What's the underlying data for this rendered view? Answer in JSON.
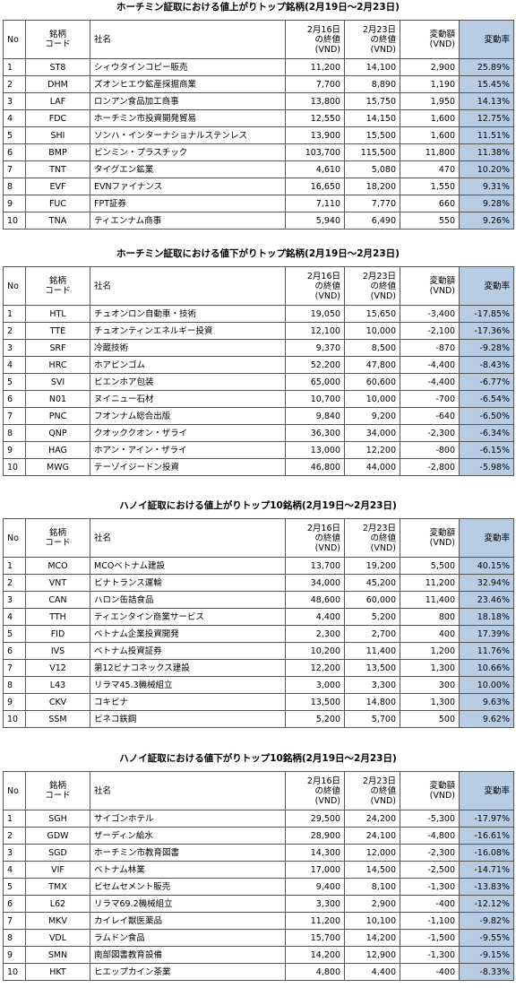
{
  "tables": [
    {
      "title": "ホーチミン証取における値上がりトップ銘柄(2月19日～2月23日)",
      "header": [
        "No",
        "銘柄\nコード",
        "社名",
        "2月16日\nの終値\n(VND)",
        "2月23日\nの終値\n(VND)",
        "変動額\n(VND)",
        "変動率"
      ],
      "rows": [
        [
          "1",
          "ST8",
          "シィウタインコピー販売",
          "11,200",
          "14,100",
          "2,900",
          "25.89%"
        ],
        [
          "2",
          "DHM",
          "ズオンヒエウ鉱産採掘商業",
          "7,700",
          "8,890",
          "1,190",
          "15.45%"
        ],
        [
          "3",
          "LAF",
          "ロンアン食品加工商事",
          "13,800",
          "15,750",
          "1,950",
          "14.13%"
        ],
        [
          "4",
          "FDC",
          "ホーチミン市投資開発貿易",
          "12,550",
          "14,150",
          "1,600",
          "12.75%"
        ],
        [
          "5",
          "SHI",
          "ソンハ・インターナショナルステンレス",
          "13,900",
          "15,500",
          "1,600",
          "11.51%"
        ],
        [
          "6",
          "BMP",
          "ビンミン・プラスチック",
          "103,700",
          "115,500",
          "11,800",
          "11.38%"
        ],
        [
          "7",
          "TNT",
          "タイグエン鉱業",
          "4,610",
          "5,080",
          "470",
          "10.20%"
        ],
        [
          "8",
          "EVF",
          "EVNファイナンス",
          "16,650",
          "18,200",
          "1,550",
          "9.31%"
        ],
        [
          "9",
          "FUC",
          "FPT証券",
          "7,110",
          "7,770",
          "660",
          "9.28%"
        ],
        [
          "10",
          "TNA",
          "ティエンナム商事",
          "5,940",
          "6,490",
          "550",
          "9.26%"
        ]
      ]
    },
    {
      "title": "ホーチミン証取における値下がりトップ銘柄(2月19日～2月23日)",
      "header": [
        "No",
        "銘柄\nコード",
        "社名",
        "2月16日\nの終値\n(VND)",
        "2月23日\nの終値\n(VND)",
        "変動額\n(VND)",
        "変動率"
      ],
      "rows": [
        [
          "1",
          "HTL",
          "チュオンロン自動車・技術",
          "19,050",
          "15,650",
          "-3,400",
          "-17.85%"
        ],
        [
          "2",
          "TTE",
          "チュオンティンエネルギー投資",
          "12,100",
          "10,000",
          "-2,100",
          "-17.36%"
        ],
        [
          "3",
          "SRF",
          "冷蔵技術",
          "9,370",
          "8,500",
          "-870",
          "-9.28%"
        ],
        [
          "4",
          "HRC",
          "ホアビンゴム",
          "52,200",
          "47,800",
          "-4,400",
          "-8.43%"
        ],
        [
          "5",
          "SVI",
          "ビエンホア包装",
          "65,000",
          "60,600",
          "-4,400",
          "-6.77%"
        ],
        [
          "6",
          "N01",
          "ヌイニュー石材",
          "10,700",
          "10,000",
          "-700",
          "-6.54%"
        ],
        [
          "7",
          "PNC",
          "フオンナム総合出版",
          "9,840",
          "9,200",
          "-640",
          "-6.50%"
        ],
        [
          "8",
          "QNP",
          "クオッククオン・ザライ",
          "36,300",
          "34,000",
          "-2,300",
          "-6.34%"
        ],
        [
          "9",
          "HAG",
          "ホアン・アイン・ザライ",
          "13,000",
          "12,200",
          "-800",
          "-6.15%"
        ],
        [
          "10",
          "MWG",
          "テーゾイジードン投資",
          "46,800",
          "44,000",
          "-2,800",
          "-5.98%"
        ]
      ]
    },
    {
      "title": "ハノイ証取における値上がりトップ10銘柄(2月19日～2月23日)",
      "header": [
        "No",
        "銘柄\nコード",
        "社名",
        "2月16日\nの終値\n(VND)",
        "2月23日\nの終値\n(VND)",
        "変動額\n(VND)",
        "変動率"
      ],
      "rows": [
        [
          "1",
          "MCO",
          "MCOベトナム建設",
          "13,700",
          "19,200",
          "5,500",
          "40.15%"
        ],
        [
          "2",
          "VNT",
          "ビナトランス運輸",
          "34,000",
          "45,200",
          "11,200",
          "32.94%"
        ],
        [
          "3",
          "CAN",
          "ハロン缶詰食品",
          "48,600",
          "60,000",
          "11,400",
          "23.46%"
        ],
        [
          "4",
          "TTH",
          "ティエンタイン商業サービス",
          "4,400",
          "5,200",
          "800",
          "18.18%"
        ],
        [
          "5",
          "FID",
          "ベトナム企業投資開発",
          "2,300",
          "2,700",
          "400",
          "17.39%"
        ],
        [
          "6",
          "IVS",
          "ベトナム投資証券",
          "10,200",
          "11,400",
          "1,200",
          "11.76%"
        ],
        [
          "7",
          "V12",
          "第12ビナコネックス建設",
          "12,200",
          "13,500",
          "1,300",
          "10.66%"
        ],
        [
          "8",
          "L43",
          "リラマ45.3機械組立",
          "3,000",
          "3,300",
          "300",
          "10.00%"
        ],
        [
          "9",
          "CKV",
          "コキビナ",
          "13,500",
          "14,800",
          "1,300",
          "9.63%"
        ],
        [
          "10",
          "SSM",
          "ビネコ鉄鋼",
          "5,200",
          "5,700",
          "500",
          "9.62%"
        ]
      ]
    },
    {
      "title": "ハノイ証取における値下がりトップ10銘柄(2月19日～2月23日)",
      "header": [
        "No",
        "銘柄\nコード",
        "社名",
        "2月16日\nの終値\n(VND)",
        "2月23日\nの終値\n(VND)",
        "変動額\n(VND)",
        "変動率"
      ],
      "rows": [
        [
          "1",
          "SGH",
          "サイゴンホテル",
          "29,500",
          "24,200",
          "-5,300",
          "-17.97%"
        ],
        [
          "2",
          "GDW",
          "ザーディン給水",
          "28,900",
          "24,100",
          "-4,800",
          "-16.61%"
        ],
        [
          "3",
          "SGD",
          "ホーチミン市教育図書",
          "14,300",
          "12,000",
          "-2,300",
          "-16.08%"
        ],
        [
          "4",
          "VIF",
          "ベトナム林業",
          "17,000",
          "14,500",
          "-2,500",
          "-14.71%"
        ],
        [
          "5",
          "TMX",
          "ビセムセメント販売",
          "9,400",
          "8,100",
          "-1,300",
          "-13.83%"
        ],
        [
          "6",
          "L62",
          "リラマ69.2機械組立",
          "3,300",
          "2,900",
          "-400",
          "-12.12%"
        ],
        [
          "7",
          "MKV",
          "カイレイ獣医薬品",
          "11,200",
          "10,100",
          "-1,100",
          "-9.82%"
        ],
        [
          "8",
          "VDL",
          "ラムドン食品",
          "15,700",
          "14,200",
          "-1,500",
          "-9.55%"
        ],
        [
          "9",
          "SMN",
          "南部図書教育設備",
          "14,200",
          "12,900",
          "-1,300",
          "-9.15%"
        ],
        [
          "10",
          "HKT",
          "ヒエップカイン茶業",
          "4,800",
          "4,400",
          "-400",
          "-8.33%"
        ]
      ]
    }
  ]
}
